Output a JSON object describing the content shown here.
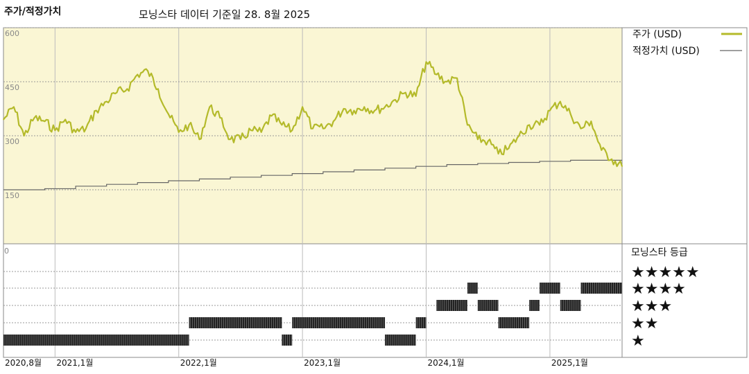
{
  "header": {
    "title": "주가/적정가치",
    "subtitle": "모닝스타 데이터 기준일 28. 8월 2025"
  },
  "colors": {
    "plot_bg": "#faf6d4",
    "price_line": "#b4ba2a",
    "fair_line": "#666666",
    "grid": "#999999",
    "rating_bar": "#222222"
  },
  "chart_data": {
    "type": "line",
    "title": "주가/적정가치",
    "ylim": [
      0,
      600
    ],
    "yticks": [
      "600",
      "450",
      "300",
      "150"
    ],
    "xticks": [
      "2020,8월",
      "2021,1월",
      "2022,1월",
      "2023,1월",
      "2024,1월",
      "2025,1월"
    ],
    "legend_position": "right",
    "series": [
      {
        "name": "주가 (USD)",
        "x": [
          "2020-08",
          "2020-09",
          "2020-10",
          "2020-11",
          "2020-12",
          "2021-01",
          "2021-02",
          "2021-03",
          "2021-04",
          "2021-05",
          "2021-06",
          "2021-07",
          "2021-08",
          "2021-09",
          "2021-10",
          "2021-11",
          "2021-12",
          "2022-01",
          "2022-02",
          "2022-03",
          "2022-04",
          "2022-05",
          "2022-06",
          "2022-07",
          "2022-08",
          "2022-09",
          "2022-10",
          "2022-11",
          "2022-12",
          "2023-01",
          "2023-02",
          "2023-03",
          "2023-04",
          "2023-05",
          "2023-06",
          "2023-07",
          "2023-08",
          "2023-09",
          "2023-10",
          "2023-11",
          "2023-12",
          "2024-01",
          "2024-02",
          "2024-03",
          "2024-04",
          "2024-05",
          "2024-06",
          "2024-07",
          "2024-08",
          "2024-09",
          "2024-10",
          "2024-11",
          "2024-12",
          "2025-01",
          "2025-02",
          "2025-03",
          "2025-04",
          "2025-05",
          "2025-06",
          "2025-07",
          "2025-08"
        ],
        "values": [
          345,
          380,
          300,
          350,
          340,
          315,
          345,
          310,
          320,
          370,
          395,
          420,
          430,
          470,
          480,
          430,
          360,
          310,
          330,
          290,
          380,
          350,
          290,
          290,
          315,
          310,
          355,
          330,
          315,
          380,
          320,
          320,
          340,
          375,
          370,
          380,
          370,
          380,
          400,
          420,
          410,
          505,
          470,
          450,
          460,
          330,
          290,
          285,
          250,
          265,
          300,
          330,
          330,
          370,
          395,
          360,
          320,
          340,
          260,
          235,
          215
        ]
      },
      {
        "name": "적정가치 (USD)",
        "x": [
          "2020-08",
          "2020-12",
          "2021-03",
          "2021-06",
          "2021-09",
          "2021-12",
          "2022-03",
          "2022-06",
          "2022-09",
          "2022-12",
          "2023-03",
          "2023-06",
          "2023-09",
          "2023-12",
          "2024-03",
          "2024-06",
          "2024-09",
          "2024-12",
          "2025-03",
          "2025-08"
        ],
        "values": [
          150,
          153,
          160,
          165,
          170,
          175,
          180,
          185,
          190,
          195,
          200,
          205,
          210,
          215,
          220,
          223,
          226,
          229,
          232,
          232
        ]
      }
    ]
  },
  "rating": {
    "title": "모닝스타 등급",
    "levels": [
      "★★★★★",
      "★★★★",
      "★★★",
      "★★",
      "★"
    ],
    "zero_label": "0",
    "history": [
      {
        "from": "2020-08",
        "to": "2022-02",
        "stars": 1
      },
      {
        "from": "2022-02",
        "to": "2022-11",
        "stars": 2
      },
      {
        "from": "2022-11",
        "to": "2022-12",
        "stars": 1
      },
      {
        "from": "2022-12",
        "to": "2023-09",
        "stars": 2
      },
      {
        "from": "2023-09",
        "to": "2023-12",
        "stars": 1
      },
      {
        "from": "2023-12",
        "to": "2024-01",
        "stars": 2
      },
      {
        "from": "2024-02",
        "to": "2024-05",
        "stars": 3
      },
      {
        "from": "2024-05",
        "to": "2024-06",
        "stars": 4
      },
      {
        "from": "2024-06",
        "to": "2024-08",
        "stars": 3
      },
      {
        "from": "2024-08",
        "to": "2024-11",
        "stars": 2
      },
      {
        "from": "2024-11",
        "to": "2024-12",
        "stars": 3
      },
      {
        "from": "2024-12",
        "to": "2025-02",
        "stars": 4
      },
      {
        "from": "2025-02",
        "to": "2025-04",
        "stars": 3
      },
      {
        "from": "2025-04",
        "to": "2025-08",
        "stars": 4
      }
    ]
  }
}
